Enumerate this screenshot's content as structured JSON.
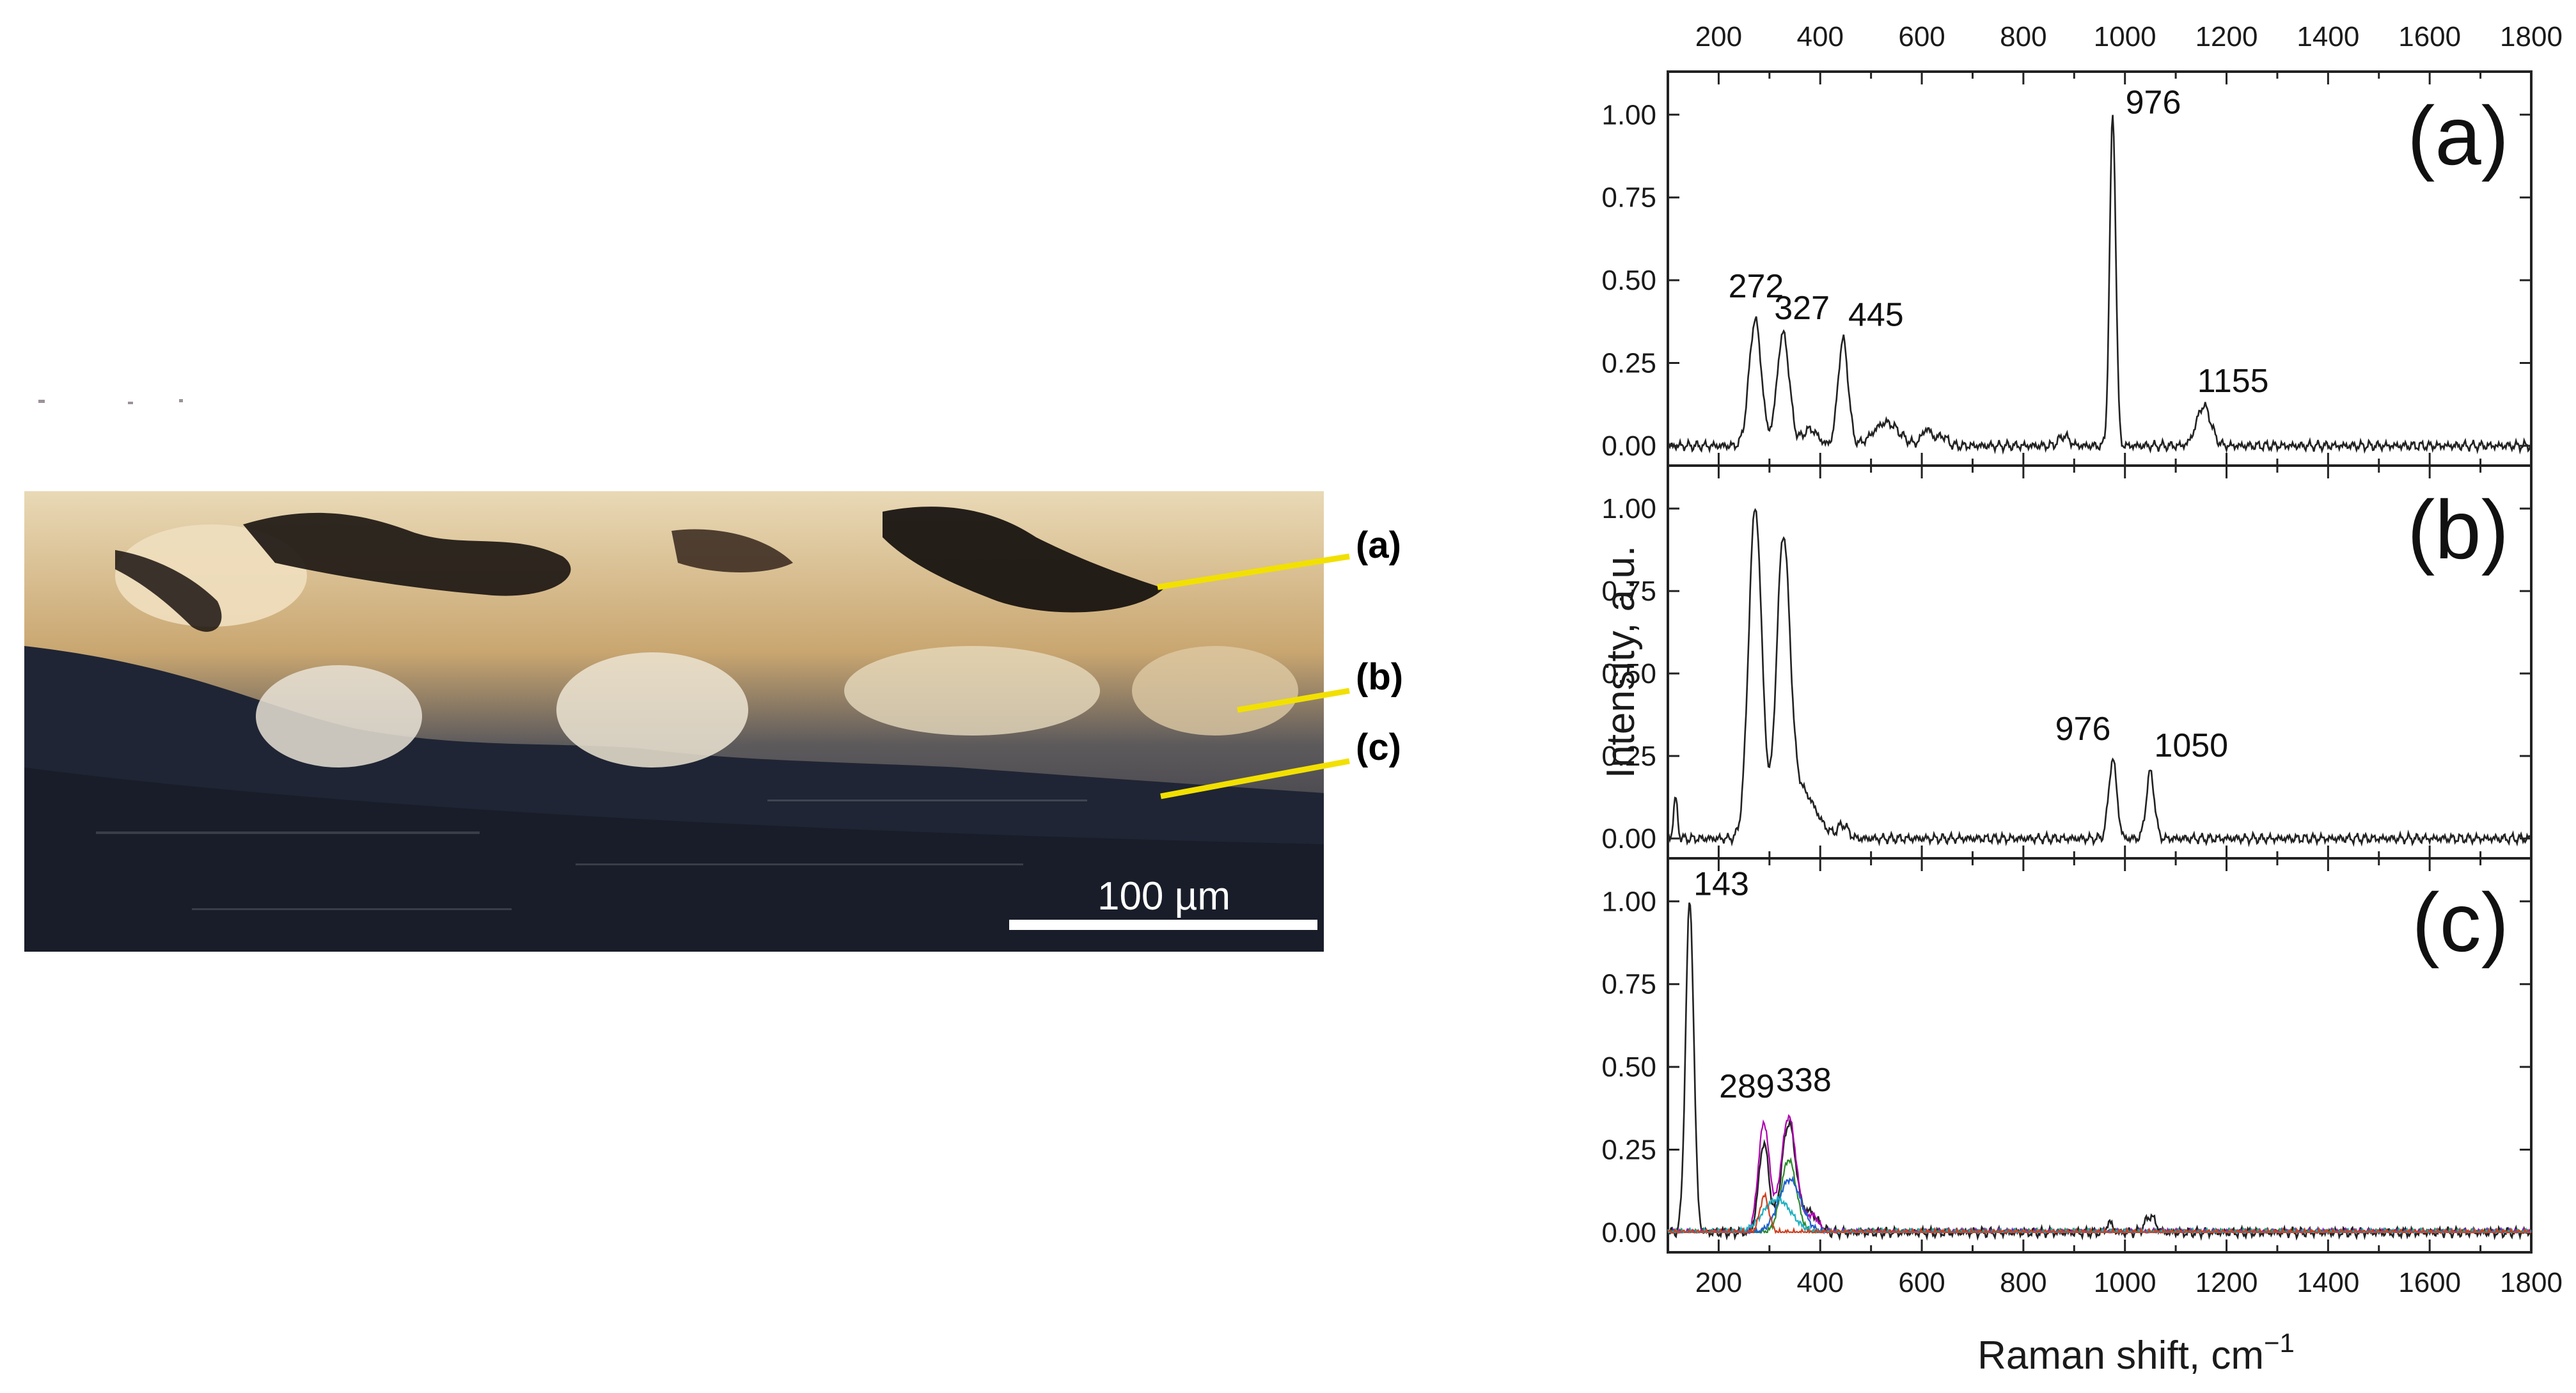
{
  "micrograph": {
    "callouts": [
      "(a)",
      "(b)",
      "(c)"
    ],
    "scale_bar_label": "100 µm"
  },
  "chart_data": {
    "type": "line",
    "xlabel": "Raman shift, cm",
    "xlabel_superscript": "−1",
    "ylabel": "Intensity, a.u.",
    "xlim": [
      100,
      1800
    ],
    "ylim": [
      -0.06,
      1.13
    ],
    "x_ticks": [
      "200",
      "400",
      "600",
      "800",
      "1000",
      "1200",
      "1400",
      "1600",
      "1800"
    ],
    "y_ticks": [
      "0.00",
      "0.25",
      "0.50",
      "0.75",
      "1.00"
    ],
    "top_axis_ticks": true,
    "grid": false,
    "panels": [
      {
        "label": "(a)",
        "series": [
          {
            "color": "#222222",
            "peaks": [
              [
                272,
                0.38,
                12
              ],
              [
                327,
                0.34,
                12
              ],
              [
                380,
                0.05,
                15
              ],
              [
                445,
                0.32,
                10
              ],
              [
                530,
                0.07,
                25
              ],
              [
                610,
                0.05,
                10
              ],
              [
                640,
                0.03,
                10
              ],
              [
                880,
                0.03,
                10
              ],
              [
                976,
                1.0,
                6
              ],
              [
                1155,
                0.12,
                14
              ]
            ]
          }
        ],
        "peak_labels": [
          {
            "x": 272,
            "y": 0.38,
            "text": "272"
          },
          {
            "x": 327,
            "y": 0.34,
            "text": "327"
          },
          {
            "x": 445,
            "y": 0.32,
            "text": "445"
          },
          {
            "x": 976,
            "y": 1.0,
            "text": "976"
          },
          {
            "x": 1155,
            "y": 0.12,
            "text": "1155"
          }
        ]
      },
      {
        "label": "(b)",
        "series": [
          {
            "color": "#222222",
            "peaks": [
              [
                115,
                0.12,
                4
              ],
              [
                272,
                1.0,
                13
              ],
              [
                327,
                0.84,
                13
              ],
              [
                360,
                0.15,
                30
              ],
              [
                445,
                0.04,
                10
              ],
              [
                976,
                0.24,
                8
              ],
              [
                1050,
                0.2,
                8
              ]
            ]
          }
        ],
        "peak_labels": [
          {
            "x": 976,
            "y": 0.24,
            "text": "976"
          },
          {
            "x": 1050,
            "y": 0.2,
            "text": "1050"
          }
        ]
      },
      {
        "label": "(c)",
        "series": [
          {
            "color": "#222222",
            "peaks": [
              [
                143,
                1.0,
                8
              ],
              [
                289,
                0.27,
                10
              ],
              [
                338,
                0.33,
                14
              ],
              [
                380,
                0.06,
                15
              ],
              [
                970,
                0.03,
                6
              ],
              [
                1050,
                0.05,
                10
              ]
            ]
          },
          {
            "color": "#b000b0",
            "peaks": [
              [
                289,
                0.33,
                11
              ],
              [
                338,
                0.35,
                15
              ],
              [
                385,
                0.05,
                12
              ]
            ]
          },
          {
            "color": "#2a8a2a",
            "peaks": [
              [
                338,
                0.22,
                15
              ]
            ]
          },
          {
            "color": "#1e5fd0",
            "peaks": [
              [
                340,
                0.16,
                22
              ]
            ]
          },
          {
            "color": "#20b0c0",
            "peaks": [
              [
                315,
                0.1,
                28
              ]
            ]
          },
          {
            "color": "#d04020",
            "peaks": [
              [
                290,
                0.11,
                9
              ]
            ]
          }
        ],
        "peak_labels": [
          {
            "x": 143,
            "y": 1.0,
            "text": "143"
          },
          {
            "x": 289,
            "y": 0.33,
            "text": "289"
          },
          {
            "x": 338,
            "y": 0.35,
            "text": "338"
          }
        ]
      }
    ]
  }
}
